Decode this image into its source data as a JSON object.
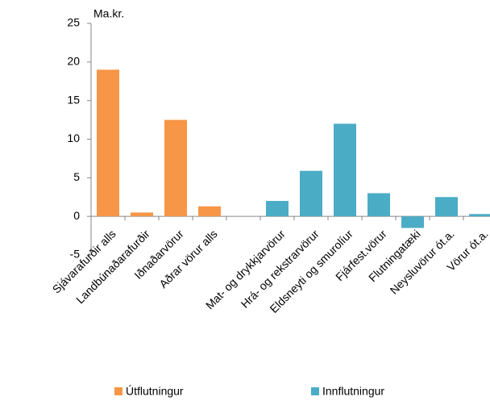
{
  "chart_data": {
    "type": "bar",
    "title": "Ma.kr.",
    "categories": [
      "Sjávarafurðir alls",
      "Landbúnaðarafurðir",
      "Iðnaðarvörur",
      "Aðrar vörur alls",
      null,
      "Mat- og drykkjarvörur",
      "Hrá- og rekstrarvörur",
      "Eldsneyti og smurolíur",
      "Fjárfest.vörur",
      "Flutningatæki",
      "Neysluvörur ót.a.",
      "Vörur ót.a."
    ],
    "series": [
      {
        "name": "Útflutningur",
        "color": "#f79646",
        "values": [
          19,
          0.5,
          12.5,
          1.3,
          null,
          null,
          null,
          null,
          null,
          null,
          null,
          null
        ]
      },
      {
        "name": "Innflutningur",
        "color": "#4bacc6",
        "values": [
          null,
          null,
          null,
          null,
          null,
          2,
          5.9,
          12,
          3,
          -1.5,
          2.5,
          0.3
        ]
      }
    ],
    "ylim": [
      -5,
      25
    ],
    "yticks": [
      -5,
      0,
      5,
      10,
      15,
      20,
      25
    ],
    "legend": "bottom"
  }
}
